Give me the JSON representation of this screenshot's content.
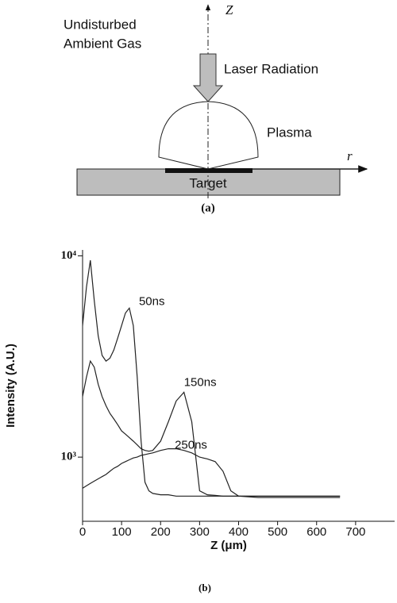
{
  "diagram": {
    "axis_label": "Z",
    "gas_label": [
      "Undisturbed",
      "Ambient Gas"
    ],
    "laser_label": "Laser Radiation",
    "plasma_label": "Plasma",
    "r_label": "r",
    "target_label": "Target",
    "caption": "(a)"
  },
  "chart_data": {
    "type": "line",
    "caption": "(b)",
    "xlabel": "Z (μm)",
    "ylabel": "Intensity (A.U.)",
    "x": [
      0,
      10,
      20,
      30,
      40,
      50,
      60,
      70,
      80,
      90,
      100,
      110,
      120,
      130,
      140,
      150,
      160,
      170,
      180,
      200,
      220,
      240,
      260,
      280,
      300,
      320,
      340,
      360,
      380,
      400,
      450,
      500,
      550,
      600,
      660
    ],
    "series": [
      {
        "name": "50ns",
        "color": "#222222",
        "values": [
          4500,
          7000,
          9500,
          6000,
          4000,
          3200,
          3000,
          3100,
          3400,
          3900,
          4500,
          5200,
          5500,
          4500,
          2500,
          1200,
          750,
          680,
          660,
          650,
          650,
          640,
          640,
          640,
          640,
          640,
          640,
          640,
          640,
          640,
          640,
          640,
          640,
          640,
          640
        ]
      },
      {
        "name": "150ns",
        "color": "#222222",
        "values": [
          2000,
          2500,
          3000,
          2800,
          2300,
          2000,
          1800,
          1650,
          1550,
          1450,
          1350,
          1300,
          1250,
          1200,
          1150,
          1100,
          1080,
          1070,
          1080,
          1200,
          1500,
          1900,
          2100,
          1500,
          680,
          650,
          645,
          640,
          640,
          640,
          640,
          640,
          640,
          640,
          640
        ]
      },
      {
        "name": "250ns",
        "color": "#222222",
        "values": [
          700,
          720,
          740,
          760,
          780,
          800,
          820,
          850,
          880,
          900,
          930,
          950,
          970,
          990,
          1000,
          1020,
          1030,
          1040,
          1050,
          1080,
          1100,
          1100,
          1080,
          1050,
          1000,
          980,
          950,
          850,
          680,
          640,
          630,
          630,
          630,
          630,
          630
        ]
      }
    ],
    "xlim": [
      0,
      800
    ],
    "xticks": [
      0,
      100,
      200,
      300,
      400,
      500,
      600,
      700
    ],
    "ylim": [
      480,
      10700
    ],
    "log_y": true,
    "yticks": [
      {
        "value": 1000,
        "label": "10³"
      },
      {
        "value": 10000,
        "label": "10⁴"
      }
    ]
  }
}
